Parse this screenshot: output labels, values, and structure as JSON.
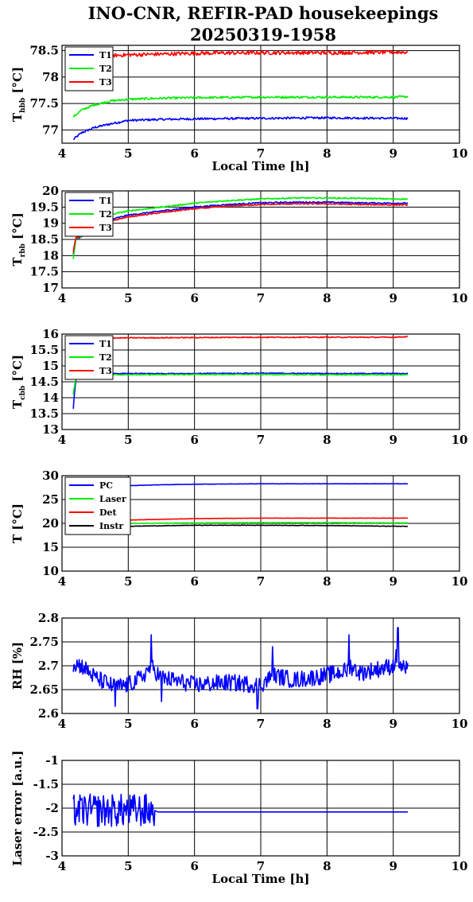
{
  "title_line1": "INO-CNR, REFIR-PAD housekeepings",
  "title_line2": "20250319-1958",
  "chart_data": [
    {
      "type": "line",
      "ylabel": "T",
      "ylabel_sub": "hbb",
      "ylabel_unit": "[°C]",
      "xlabel": "Local Time [h]",
      "xlim": [
        4,
        10
      ],
      "ylim": [
        76.75,
        78.6
      ],
      "xticks": [
        "4",
        "5",
        "6",
        "7",
        "8",
        "9",
        "10"
      ],
      "yticks": [
        "77",
        "77.5",
        "78",
        "78.5"
      ],
      "grid": true,
      "legend": "top-left",
      "series": [
        {
          "name": "T1",
          "color": "#0000ff",
          "x": [
            4.17,
            4.3,
            4.5,
            4.75,
            5.0,
            5.5,
            6.0,
            7.0,
            8.0,
            9.0,
            9.22
          ],
          "y": [
            76.82,
            76.95,
            77.05,
            77.12,
            77.18,
            77.2,
            77.21,
            77.22,
            77.23,
            77.22,
            77.22
          ],
          "noise": 0.02
        },
        {
          "name": "T2",
          "color": "#00ee00",
          "x": [
            4.17,
            4.3,
            4.5,
            4.75,
            5.0,
            5.5,
            6.0,
            7.0,
            8.0,
            9.0,
            9.22
          ],
          "y": [
            77.25,
            77.38,
            77.48,
            77.55,
            77.58,
            77.6,
            77.61,
            77.62,
            77.62,
            77.62,
            77.63
          ],
          "noise": 0.02
        },
        {
          "name": "T3",
          "color": "#ff0000",
          "x": [
            4.5,
            4.6,
            5.0,
            6.0,
            7.0,
            8.0,
            9.0,
            9.22
          ],
          "y": [
            78.38,
            78.4,
            78.42,
            78.45,
            78.46,
            78.46,
            78.47,
            78.47
          ],
          "noise": 0.035
        }
      ]
    },
    {
      "type": "line",
      "ylabel": "T",
      "ylabel_sub": "rbb",
      "ylabel_unit": "[°C]",
      "xlabel": "",
      "xlim": [
        4,
        10
      ],
      "ylim": [
        17,
        20
      ],
      "xticks": [
        "4",
        "5",
        "6",
        "7",
        "8",
        "9",
        "10"
      ],
      "yticks": [
        "17",
        "17.5",
        "18",
        "18.5",
        "19",
        "19.5",
        "20"
      ],
      "grid": true,
      "legend": "top-left",
      "series": [
        {
          "name": "T1",
          "color": "#0000ff",
          "x": [
            4.17,
            4.19,
            4.21,
            4.8,
            5.0,
            5.5,
            6.0,
            6.5,
            7.0,
            7.5,
            8.0,
            8.5,
            9.0,
            9.22
          ],
          "y": [
            18.05,
            18.3,
            18.5,
            19.15,
            19.25,
            19.38,
            19.5,
            19.58,
            19.63,
            19.65,
            19.65,
            19.63,
            19.62,
            19.62
          ],
          "noise": 0.02
        },
        {
          "name": "T2",
          "color": "#00ee00",
          "x": [
            4.17,
            4.19,
            4.21,
            4.8,
            5.0,
            5.5,
            6.0,
            6.5,
            7.0,
            7.5,
            8.0,
            8.5,
            9.0,
            9.22
          ],
          "y": [
            17.9,
            18.2,
            18.5,
            19.3,
            19.38,
            19.5,
            19.62,
            19.7,
            19.75,
            19.78,
            19.78,
            19.77,
            19.75,
            19.75
          ],
          "noise": 0.02
        },
        {
          "name": "T3",
          "color": "#ff0000",
          "x": [
            4.17,
            4.19,
            4.21,
            4.8,
            5.0,
            5.5,
            6.0,
            6.5,
            7.0,
            7.5,
            8.0,
            8.5,
            9.0,
            9.22
          ],
          "y": [
            18.1,
            18.35,
            18.55,
            19.1,
            19.2,
            19.33,
            19.45,
            19.53,
            19.58,
            19.6,
            19.6,
            19.58,
            19.57,
            19.57
          ],
          "noise": 0.02
        }
      ]
    },
    {
      "type": "line",
      "ylabel": "T",
      "ylabel_sub": "cbb",
      "ylabel_unit": "[°C]",
      "xlabel": "",
      "xlim": [
        4,
        10
      ],
      "ylim": [
        13,
        16
      ],
      "xticks": [
        "4",
        "5",
        "6",
        "7",
        "8",
        "9",
        "10"
      ],
      "yticks": [
        "13",
        "13.5",
        "14",
        "14.5",
        "15",
        "15.5",
        "16"
      ],
      "grid": true,
      "legend": "top-left",
      "series": [
        {
          "name": "T1",
          "color": "#0000ff",
          "x": [
            4.17,
            4.19,
            4.21,
            4.25,
            4.6,
            5.0,
            6.0,
            7.0,
            8.0,
            9.0,
            9.22
          ],
          "y": [
            13.65,
            14.2,
            14.55,
            14.72,
            14.75,
            14.76,
            14.76,
            14.77,
            14.76,
            14.76,
            14.76
          ],
          "noise": 0.015
        },
        {
          "name": "T2",
          "color": "#00ee00",
          "x": [
            4.17,
            4.19,
            4.21,
            4.25,
            4.6,
            5.0,
            6.0,
            7.0,
            8.0,
            9.0,
            9.22
          ],
          "y": [
            14.1,
            14.4,
            14.6,
            14.7,
            14.72,
            14.72,
            14.73,
            14.73,
            14.72,
            14.72,
            14.72
          ],
          "noise": 0.015
        },
        {
          "name": "T3",
          "color": "#ff0000",
          "x": [
            4.6,
            5.0,
            6.0,
            7.0,
            8.0,
            9.0,
            9.22
          ],
          "y": [
            15.88,
            15.88,
            15.89,
            15.9,
            15.9,
            15.9,
            15.92
          ],
          "noise": 0.015
        }
      ]
    },
    {
      "type": "line",
      "ylabel": "T [°C]",
      "ylabel_sub": "",
      "ylabel_unit": "",
      "xlabel": "",
      "xlim": [
        4,
        10
      ],
      "ylim": [
        10,
        30
      ],
      "xticks": [
        "4",
        "5",
        "6",
        "7",
        "8",
        "9",
        "10"
      ],
      "yticks": [
        "10",
        "15",
        "20",
        "25",
        "30"
      ],
      "grid": true,
      "legend": "top-left",
      "series": [
        {
          "name": "PC",
          "color": "#0000ff",
          "x": [
            4.6,
            5.0,
            5.5,
            6.0,
            7.0,
            8.0,
            9.0,
            9.22
          ],
          "y": [
            27.8,
            27.9,
            28.1,
            28.2,
            28.3,
            28.3,
            28.3,
            28.3
          ],
          "noise": 0.03
        },
        {
          "name": "Laser",
          "color": "#00ee00",
          "x": [
            4.6,
            5.0,
            5.5,
            6.0,
            7.0,
            8.0,
            9.0,
            9.22
          ],
          "y": [
            19.9,
            20.0,
            20.05,
            20.1,
            20.15,
            20.15,
            20.1,
            20.1
          ],
          "noise": 0.04
        },
        {
          "name": "Det",
          "color": "#ff0000",
          "x": [
            4.9,
            5.0,
            5.5,
            6.0,
            7.0,
            8.0,
            9.0,
            9.22
          ],
          "y": [
            20.6,
            20.7,
            20.85,
            21.0,
            21.1,
            21.1,
            21.1,
            21.1
          ],
          "noise": 0.03
        },
        {
          "name": "Instr",
          "color": "#000000",
          "x": [
            4.6,
            5.0,
            5.5,
            6.0,
            7.0,
            8.0,
            9.0,
            9.22
          ],
          "y": [
            19.2,
            19.4,
            19.5,
            19.6,
            19.6,
            19.55,
            19.4,
            19.4
          ],
          "noise": 0.05
        }
      ]
    },
    {
      "type": "line",
      "ylabel": "RH [%]",
      "ylabel_sub": "",
      "ylabel_unit": "",
      "xlabel": "",
      "xlim": [
        4,
        10
      ],
      "ylim": [
        2.6,
        2.8
      ],
      "xticks": [
        "4",
        "5",
        "6",
        "7",
        "8",
        "9",
        "10"
      ],
      "yticks": [
        "2.6",
        "2.65",
        "2.7",
        "2.75",
        "2.8"
      ],
      "grid": true,
      "legend": "none",
      "series": [
        {
          "name": "",
          "color": "#0000ff",
          "x": [
            4.17,
            4.3,
            4.5,
            4.8,
            5.0,
            5.2,
            5.35,
            5.4,
            5.5,
            6.0,
            6.5,
            7.0,
            7.2,
            7.5,
            8.0,
            8.3,
            8.35,
            8.5,
            9.0,
            9.05,
            9.1,
            9.22
          ],
          "y": [
            2.705,
            2.7,
            2.675,
            2.655,
            2.66,
            2.675,
            2.7,
            2.69,
            2.675,
            2.66,
            2.665,
            2.66,
            2.68,
            2.67,
            2.68,
            2.69,
            2.7,
            2.685,
            2.7,
            2.72,
            2.7,
            2.69
          ],
          "noise": 0.018,
          "spikes": [
            [
              5.35,
              2.765
            ],
            [
              8.33,
              2.765
            ],
            [
              9.07,
              2.78
            ],
            [
              7.18,
              2.74
            ],
            [
              5.5,
              2.625
            ],
            [
              6.95,
              2.61
            ],
            [
              4.8,
              2.615
            ]
          ]
        }
      ]
    },
    {
      "type": "line",
      "ylabel": "Laser error [a.u.]",
      "ylabel_sub": "",
      "ylabel_unit": "",
      "xlabel": "Local Time [h]",
      "xlim": [
        4,
        10
      ],
      "ylim": [
        -3,
        -1
      ],
      "xticks": [
        "4",
        "5",
        "6",
        "7",
        "8",
        "9",
        "10"
      ],
      "yticks": [
        "-1",
        "-1.5",
        "-2",
        "-2.5",
        "-3"
      ],
      "grid": true,
      "legend": "none",
      "series": [
        {
          "name": "",
          "color": "#0000ff",
          "x": [
            4.17,
            4.5,
            5.0,
            5.4,
            5.45,
            6.0,
            7.0,
            8.0,
            9.0,
            9.22
          ],
          "y": [
            -2.05,
            -2.05,
            -2.05,
            -2.05,
            -2.08,
            -2.08,
            -2.08,
            -2.08,
            -2.08,
            -2.08
          ],
          "noise": 0.0,
          "burst": {
            "from": 4.17,
            "to": 5.4,
            "amp": 0.35
          }
        }
      ]
    }
  ]
}
